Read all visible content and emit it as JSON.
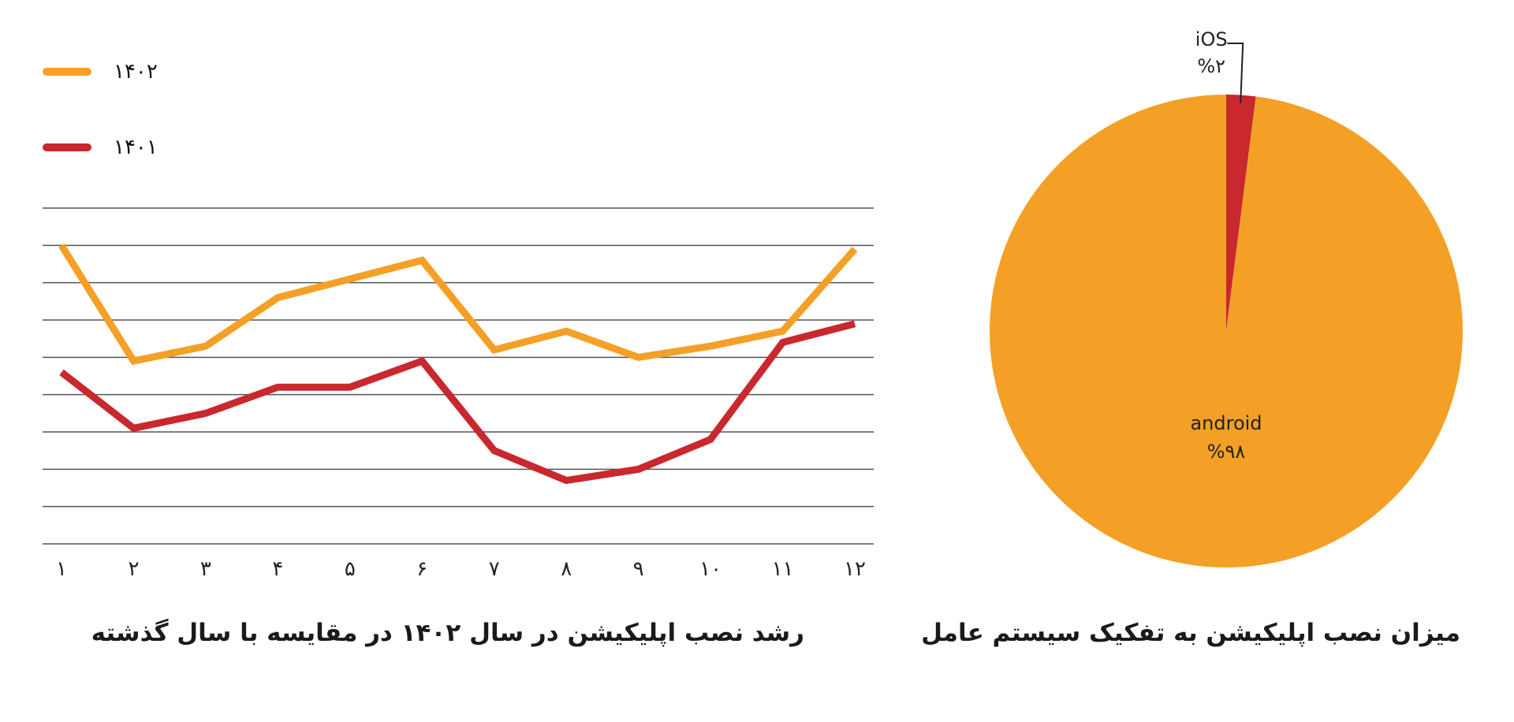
{
  "chart_data": [
    {
      "type": "line",
      "title": "رشد نصب اپلیکیشن در سال ۱۴۰۲ در مقایسه با سال گذشته",
      "categories": [
        "۱",
        "۲",
        "۳",
        "۴",
        "۵",
        "۶",
        "۷",
        "۸",
        "۹",
        "۱۰",
        "۱۱",
        "۱۲"
      ],
      "grid": true,
      "legend_position": "top-left",
      "ylim": [
        0,
        9
      ],
      "series": [
        {
          "name": "۱۴۰۲",
          "color": "#F4A026",
          "values": [
            8.0,
            4.9,
            5.3,
            6.6,
            7.1,
            7.6,
            5.2,
            5.7,
            5.0,
            5.3,
            5.7,
            7.9
          ]
        },
        {
          "name": "۱۴۰۱",
          "color": "#C8282E",
          "values": [
            4.6,
            3.1,
            3.5,
            4.2,
            4.2,
            4.9,
            2.5,
            1.7,
            2.0,
            2.8,
            5.4,
            5.9
          ]
        }
      ]
    },
    {
      "type": "pie",
      "title": "میزان نصب اپلیکیشن به تفکیک سیستم عامل",
      "slices": [
        {
          "label": "iOS",
          "value": 2,
          "value_label": "%۲",
          "color": "#C8282E"
        },
        {
          "label": "android",
          "value": 98,
          "value_label": "%۹۸",
          "color": "#F4A026"
        }
      ]
    }
  ]
}
